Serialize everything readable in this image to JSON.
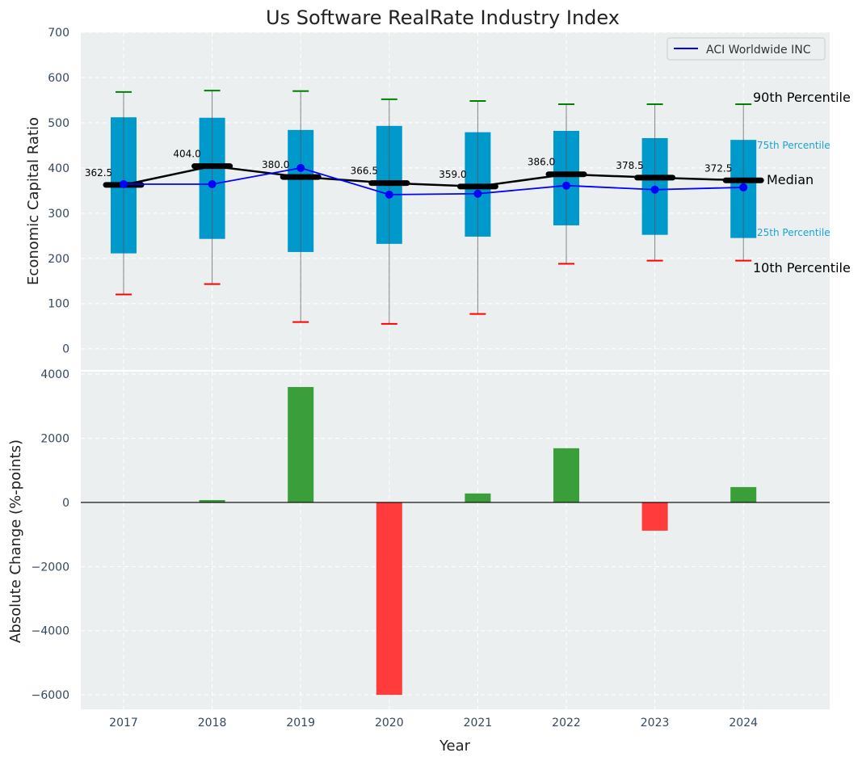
{
  "chart_data": [
    {
      "type": "box",
      "title": "Us Software RealRate Industry Index",
      "xlabel": "",
      "ylabel": "Economic Capital Ratio",
      "ylim": [
        -47,
        700
      ],
      "yticks": [
        0,
        100,
        200,
        300,
        400,
        500,
        600,
        700
      ],
      "categories": [
        "2017",
        "2018",
        "2019",
        "2020",
        "2021",
        "2022",
        "2023",
        "2024"
      ],
      "p10": [
        120,
        143,
        59,
        55,
        77,
        188,
        195,
        195
      ],
      "p25": [
        211,
        243,
        214,
        232,
        248,
        273,
        252,
        245
      ],
      "median": [
        362.5,
        404.0,
        380.0,
        366.5,
        359.0,
        386.0,
        378.5,
        372.5
      ],
      "median_labels": [
        "362.5",
        "404.0",
        "380.0",
        "366.5",
        "359.0",
        "386.0",
        "378.5",
        "372.5"
      ],
      "p75": [
        512,
        511,
        484,
        493,
        479,
        482,
        466,
        462
      ],
      "p90": [
        568,
        571,
        570,
        552,
        548,
        541,
        541,
        541
      ],
      "series": [
        {
          "name": "ACI Worldwide INC",
          "values": [
            364,
            364,
            400,
            341,
            343,
            361,
            352,
            357
          ]
        }
      ],
      "legend": "top-right",
      "annotations": {
        "p90": "90th Percentile",
        "p75": "75th Percentile",
        "median": "Median",
        "p25": "25th Percentile",
        "p10": "10th Percentile"
      },
      "grid": true
    },
    {
      "type": "bar",
      "xlabel": "Year",
      "ylabel": "Absolute Change (%-points)",
      "ylim": [
        -6450,
        4080
      ],
      "yticks": [
        -6000,
        -4000,
        -2000,
        0,
        2000,
        4000
      ],
      "ytick_labels": [
        "−6000",
        "−4000",
        "−2000",
        "0",
        "2000",
        "4000"
      ],
      "categories": [
        "2017",
        "2018",
        "2019",
        "2020",
        "2021",
        "2022",
        "2023",
        "2024"
      ],
      "values": [
        0,
        75,
        3600,
        -6000,
        280,
        1690,
        -880,
        480
      ],
      "grid": true
    }
  ],
  "colors": {
    "box": "#0099cc",
    "pos": "#3a9e3a",
    "neg": "#ff3b3b",
    "line": "#0000ff",
    "bg": "#eceff0"
  }
}
